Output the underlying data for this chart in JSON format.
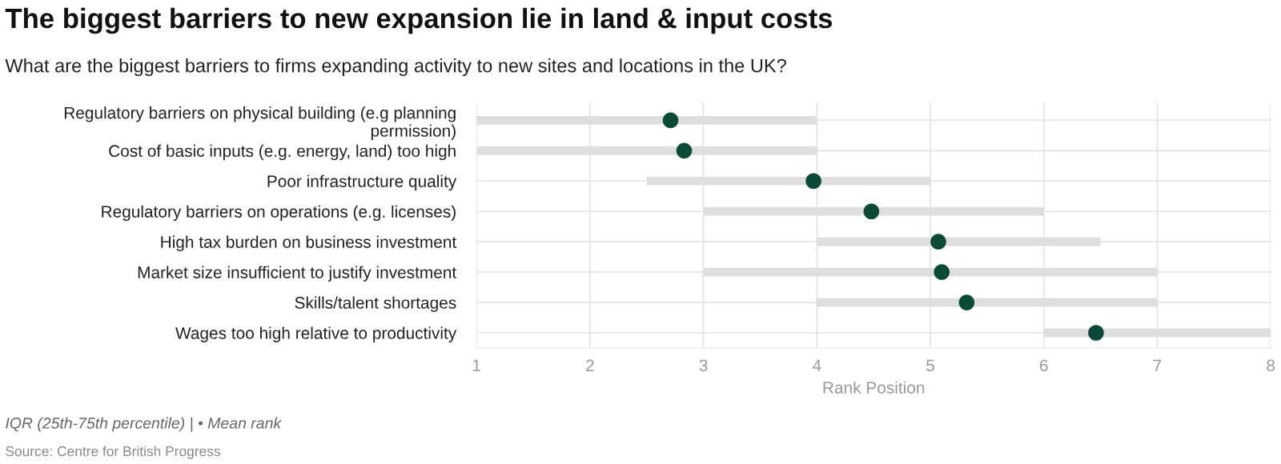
{
  "chart_data": {
    "type": "bar",
    "orientation": "horizontal",
    "title": "The biggest barriers to new expansion lie in land & input costs",
    "subtitle": "What are the biggest barriers to firms expanding activity to new sites and locations in the UK?",
    "xlabel": "Rank Position",
    "categories": [
      "Regulatory barriers on physical building (e.g planning\npermission)",
      "Cost of basic inputs (e.g. energy, land) too high",
      "Poor infrastructure quality",
      "Regulatory barriers on operations (e.g. licenses)",
      "High tax burden on business investment",
      "Market size insufficient to justify investment",
      "Skills/talent shortages",
      "Wages too high relative to productivity"
    ],
    "series": [
      {
        "color": "#dedede",
        "base": [
          1,
          1,
          2.5,
          3,
          4,
          3,
          4,
          6
        ],
        "values": [
          3,
          3,
          2.5,
          3,
          2.5,
          4,
          3,
          2
        ]
      },
      {
        "type": "scatter",
        "color": "#0b4a36",
        "values": [
          2.71,
          2.83,
          3.97,
          4.48,
          5.07,
          5.1,
          5.32,
          6.46
        ]
      }
    ],
    "xlim": [
      1,
      8
    ],
    "xticks": [
      1,
      2,
      3,
      4,
      5,
      6,
      7,
      8
    ],
    "grid": true,
    "marker": "circle",
    "annotations": [
      "IQR (25th-75th percentile) | • Mean rank",
      "Source: Centre for British Progress"
    ]
  }
}
